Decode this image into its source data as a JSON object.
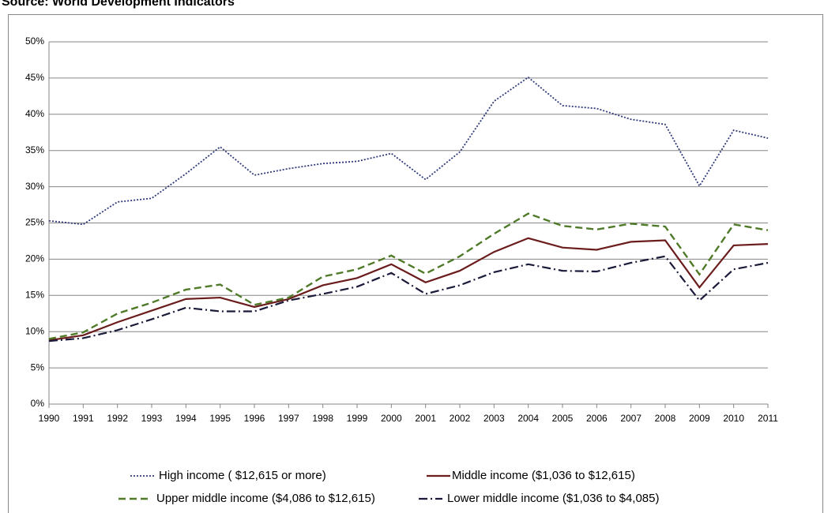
{
  "chart_data": {
    "type": "line",
    "title": "Source: World Development Indicators",
    "x": [
      1990,
      1991,
      1992,
      1993,
      1994,
      1995,
      1996,
      1997,
      1998,
      1999,
      2000,
      2001,
      2002,
      2003,
      2004,
      2005,
      2006,
      2007,
      2008,
      2009,
      2010,
      2011
    ],
    "xlim": [
      1990,
      2011
    ],
    "xticks": [
      1990,
      1991,
      1992,
      1993,
      1994,
      1995,
      1996,
      1997,
      1998,
      1999,
      2000,
      2001,
      2002,
      2003,
      2004,
      2005,
      2006,
      2007,
      2008,
      2009,
      2010,
      2011
    ],
    "ylim": [
      0,
      50
    ],
    "yticks": [
      {
        "value": 0,
        "label": "0%"
      },
      {
        "value": 5,
        "label": "5%"
      },
      {
        "value": 10,
        "label": "10%"
      },
      {
        "value": 15,
        "label": "15%"
      },
      {
        "value": 20,
        "label": "20%"
      },
      {
        "value": 25,
        "label": "25%"
      },
      {
        "value": 30,
        "label": "30%"
      },
      {
        "value": 35,
        "label": "35%"
      },
      {
        "value": 40,
        "label": "40%"
      },
      {
        "value": 45,
        "label": "45%"
      },
      {
        "value": 50,
        "label": "50%"
      }
    ],
    "grid": true,
    "legend": "bottom",
    "series": [
      {
        "name": "High income ( $12,615 or more)",
        "color": "#2f3a7a",
        "dash": "dot",
        "values": [
          25.3,
          24.8,
          27.9,
          28.4,
          31.8,
          35.5,
          31.6,
          32.5,
          33.2,
          33.5,
          34.6,
          31.0,
          34.8,
          41.8,
          45.1,
          41.2,
          40.8,
          39.3,
          38.6,
          30.1,
          37.8,
          36.7
        ]
      },
      {
        "name": "Middle income ($1,036 to $12,615)",
        "color": "#6b1c1c",
        "dash": "solid",
        "values": [
          8.8,
          9.5,
          11.3,
          12.9,
          14.5,
          14.7,
          13.4,
          14.5,
          16.4,
          17.4,
          19.3,
          16.8,
          18.4,
          21.0,
          22.9,
          21.6,
          21.3,
          22.4,
          22.6,
          16.1,
          21.9,
          22.1
        ]
      },
      {
        "name": "Upper middle income ($4,086 to $12,615)",
        "color": "#4f7a28",
        "dash": "dash",
        "values": [
          9.0,
          9.9,
          12.5,
          14.0,
          15.8,
          16.5,
          13.7,
          14.7,
          17.6,
          18.6,
          20.5,
          18.0,
          20.4,
          23.5,
          26.3,
          24.6,
          24.1,
          24.9,
          24.5,
          17.9,
          24.8,
          24.0
        ]
      },
      {
        "name": "Lower middle income ($1,036 to $4,085)",
        "color": "#1a1a3a",
        "dash": "dashdot",
        "values": [
          8.7,
          9.1,
          10.2,
          11.7,
          13.3,
          12.8,
          12.8,
          14.3,
          15.2,
          16.2,
          18.1,
          15.2,
          16.4,
          18.2,
          19.3,
          18.4,
          18.3,
          19.5,
          20.4,
          14.3,
          18.6,
          19.5
        ]
      }
    ]
  }
}
